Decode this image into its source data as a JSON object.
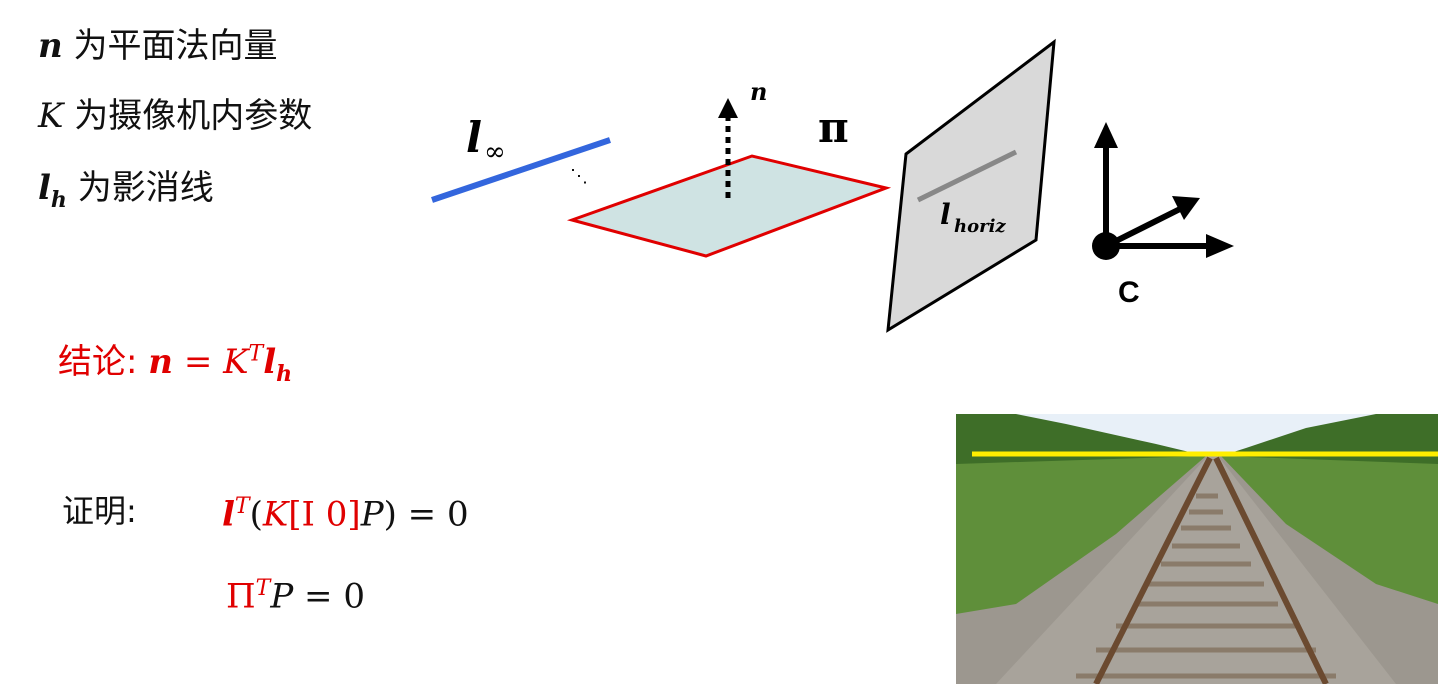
{
  "definitions": [
    {
      "symbol": "n",
      "text": "为平面法向量"
    },
    {
      "symbol": "K",
      "text": "为摄像机内参数"
    },
    {
      "symbol": "l",
      "sub": "h",
      "text": "为影消线"
    }
  ],
  "conclusion": {
    "label": "结论:",
    "lhs": "n",
    "eq": "=",
    "K": "K",
    "sup": "T",
    "l": "l",
    "sub": "h"
  },
  "proof": {
    "label": "证明:",
    "eq1": {
      "l": "l",
      "sup": "T",
      "open": "(",
      "K": "K",
      "I0": "[I 0]",
      "P": "P",
      "close": ")",
      "rhs": "= 0"
    },
    "eq2": {
      "Pi": "Π",
      "sup": "T",
      "P": "P",
      "rhs": "= 0"
    }
  },
  "diagram": {
    "l_inf_main": "l",
    "l_inf_sub": "∞",
    "dots": "⋱",
    "normal_label": "n",
    "plane_label": "π",
    "horizon_main": "l",
    "horizon_sub": "horiz",
    "camera_label": "C",
    "colors": {
      "l_inf": "#3366dd",
      "plane_fill": "#cfe3e3",
      "plane_edge": "#e00000",
      "image_plane": "#d9d9d9",
      "horizon": "#888888"
    }
  },
  "photo": {
    "horizon_color": "#ffee00",
    "sky": "#e8f0f8",
    "trees": "#3e6e28",
    "grass": "#5f8f3a",
    "gravel": "#a8a39b",
    "rail": "#6b4a30"
  }
}
